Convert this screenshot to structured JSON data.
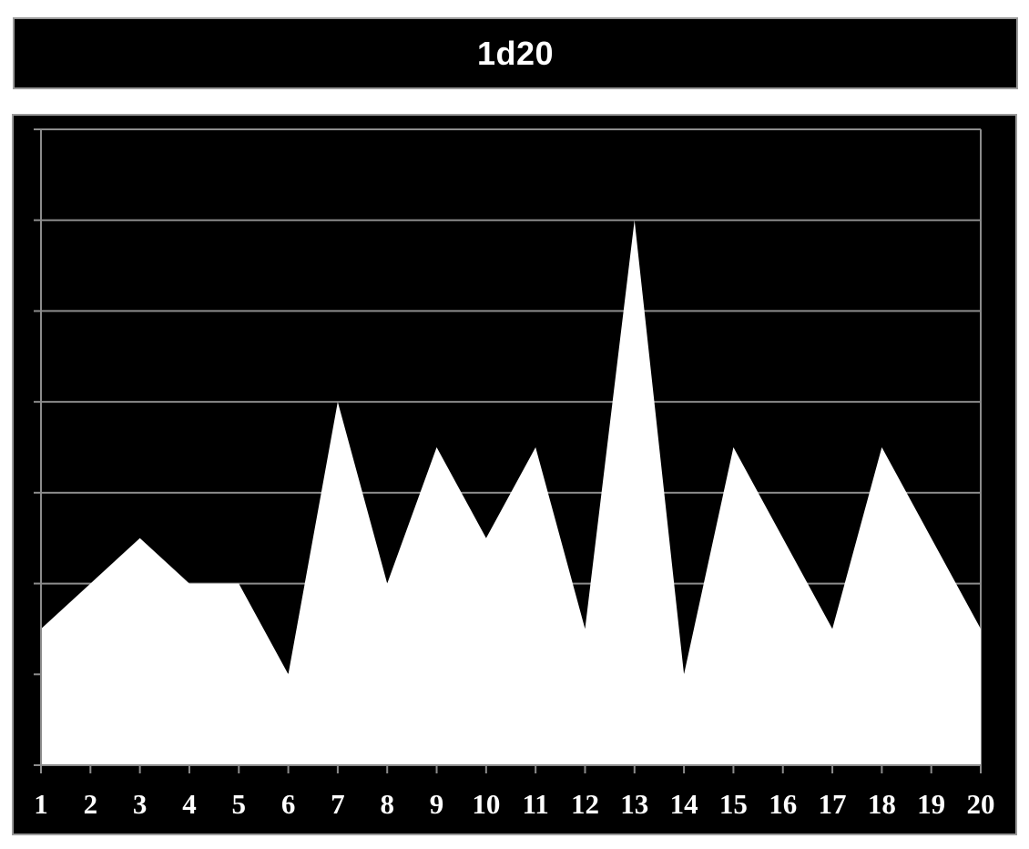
{
  "title": "1d20",
  "colors": {
    "background": "#000000",
    "area_fill": "#ffffff",
    "grid": "#8c8c8c",
    "text": "#ffffff",
    "border": "#9a9a9a"
  },
  "chart_data": {
    "type": "area",
    "title": "1d20",
    "xlabel": "",
    "ylabel": "",
    "categories": [
      "1",
      "2",
      "3",
      "4",
      "5",
      "6",
      "7",
      "8",
      "9",
      "10",
      "11",
      "12",
      "13",
      "14",
      "15",
      "16",
      "17",
      "18",
      "19",
      "20"
    ],
    "values": [
      3,
      4,
      5,
      4,
      4,
      2,
      8,
      4,
      7,
      5,
      7,
      3,
      12,
      2,
      7,
      5,
      3,
      7,
      5,
      3
    ],
    "ylim": [
      0,
      14
    ],
    "y_gridlines": [
      2,
      4,
      6,
      8,
      10,
      12,
      14
    ],
    "y_tick_labels_shown": false,
    "grid": true,
    "legend": "none"
  }
}
